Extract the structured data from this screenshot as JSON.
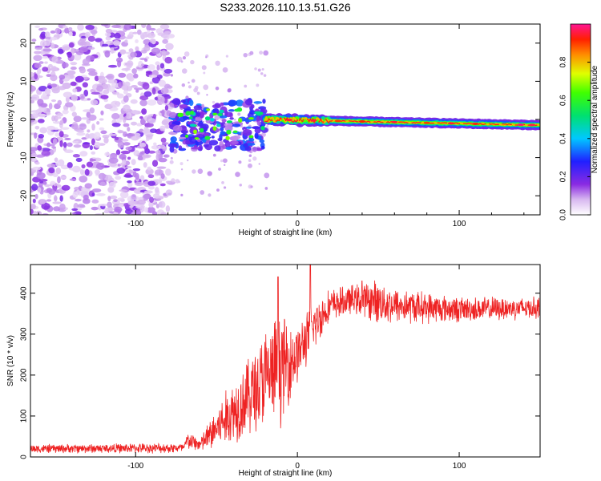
{
  "title": "S233.2026.110.13.51.G26",
  "chart_data": [
    {
      "type": "heatmap",
      "name": "spectrogram",
      "xlabel": "Height of straight line (km)",
      "ylabel": "Frequency (Hz)",
      "xlim": [
        -165,
        150
      ],
      "ylim": [
        -25,
        25
      ],
      "xticks": [
        -100,
        0,
        100
      ],
      "yticks": [
        -20,
        -10,
        0,
        10,
        20
      ],
      "colorbar": {
        "label": "Normalized spectral amplitude",
        "range": [
          0,
          1
        ],
        "ticks": [
          "0.0",
          "0.2",
          "0.4",
          "0.6",
          "0.8"
        ],
        "tick_values": [
          0,
          0.2,
          0.4,
          0.6,
          0.8
        ]
      },
      "features": [
        {
          "region": "noise",
          "x_range": [
            -165,
            -78
          ],
          "freq_range": [
            -25,
            25
          ],
          "amplitude": 0.1
        },
        {
          "region": "scattered",
          "x_range": [
            -78,
            -20
          ],
          "freq_range": [
            -8,
            5
          ],
          "amplitude": 0.3
        },
        {
          "region": "carrier",
          "x_range": [
            -20,
            150
          ],
          "freq_center": [
            0,
            -1.5
          ],
          "amplitude": 0.95
        }
      ]
    },
    {
      "type": "line",
      "name": "snr",
      "xlabel": "Height of straight line (km)",
      "ylabel": "SNR (10 * v/v)",
      "xlim": [
        -165,
        150
      ],
      "ylim": [
        0,
        470
      ],
      "xticks": [
        -100,
        0,
        100
      ],
      "yticks": [
        0,
        100,
        200,
        300,
        400
      ],
      "color": "#ee2222",
      "profile": [
        {
          "x": -165,
          "snr": 20,
          "spread": 12
        },
        {
          "x": -70,
          "snr": 22,
          "spread": 14
        },
        {
          "x": -68,
          "snr": 40,
          "spread": 25
        },
        {
          "x": -60,
          "snr": 30,
          "spread": 20
        },
        {
          "x": -50,
          "snr": 70,
          "spread": 60
        },
        {
          "x": -40,
          "snr": 110,
          "spread": 90
        },
        {
          "x": -30,
          "snr": 150,
          "spread": 110
        },
        {
          "x": -20,
          "snr": 190,
          "spread": 140
        },
        {
          "x": -10,
          "snr": 220,
          "spread": 150
        },
        {
          "x": 0,
          "snr": 250,
          "spread": 80
        },
        {
          "x": 10,
          "snr": 320,
          "spread": 70
        },
        {
          "x": 20,
          "snr": 370,
          "spread": 45
        },
        {
          "x": 35,
          "snr": 385,
          "spread": 40
        },
        {
          "x": 50,
          "snr": 380,
          "spread": 60
        },
        {
          "x": 60,
          "snr": 370,
          "spread": 50
        },
        {
          "x": 100,
          "snr": 360,
          "spread": 35
        },
        {
          "x": 150,
          "snr": 365,
          "spread": 30
        }
      ],
      "peaks": [
        {
          "x": -12,
          "snr": 440
        },
        {
          "x": 8,
          "snr": 470
        },
        {
          "x": 40,
          "snr": 430
        }
      ]
    }
  ]
}
